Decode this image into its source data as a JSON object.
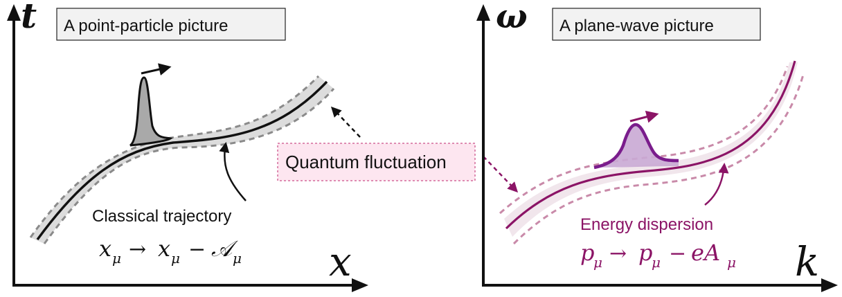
{
  "left_panel": {
    "axis_y_label": "t",
    "axis_x_label": "x",
    "title_box": "A point-particle picture",
    "caption": "Classical trajectory",
    "formula": {
      "var": "x",
      "sub": "μ",
      "arrow": "→",
      "minus": "−",
      "gauge": "𝒜"
    }
  },
  "right_panel": {
    "axis_y_label": "ω",
    "axis_x_label": "k",
    "title_box": "A plane-wave picture",
    "caption": "Energy dispersion",
    "formula": {
      "var": "p",
      "sub": "μ",
      "arrow": "→",
      "minus": "−",
      "gauge": "eA"
    }
  },
  "center_label": "Quantum fluctuation",
  "colors": {
    "axis": "#111111",
    "left_curve": "#111111",
    "left_dashed": "#8a8a8a",
    "left_fill": "#cfcfcf",
    "right_curve": "#8b1466",
    "right_dashed": "#c98aa9",
    "right_fill": "#c9a9d4",
    "right_packet": "#7a1c8c",
    "label_box_fill": "#fde6f0",
    "label_box_border": "#d36a9a"
  }
}
